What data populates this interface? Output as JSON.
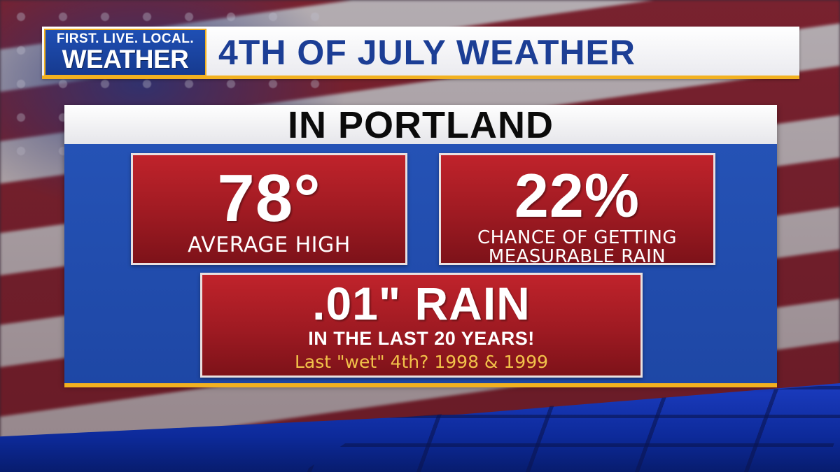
{
  "brand": {
    "tagline": "FIRST. LIVE. LOCAL.",
    "name": "WEATHER",
    "accent_color": "#f2b120",
    "brand_blue": "#1c3e95"
  },
  "header": {
    "title": "4TH OF JULY WEATHER"
  },
  "panel": {
    "title": "IN PORTLAND",
    "stats": [
      {
        "value": "78°",
        "label": "AVERAGE HIGH"
      },
      {
        "value": "22%",
        "label_line1": "CHANCE OF GETTING",
        "label_line2": "MEASURABLE RAIN"
      }
    ],
    "rain": {
      "value": ".01\" RAIN",
      "period": "IN THE LAST 20 YEARS!",
      "note": "Last \"wet\" 4th?  1998 & 1999"
    }
  },
  "colors": {
    "box_red": "#b01f27",
    "panel_blue": "#2654b8",
    "note_gold": "#f2c24a"
  }
}
